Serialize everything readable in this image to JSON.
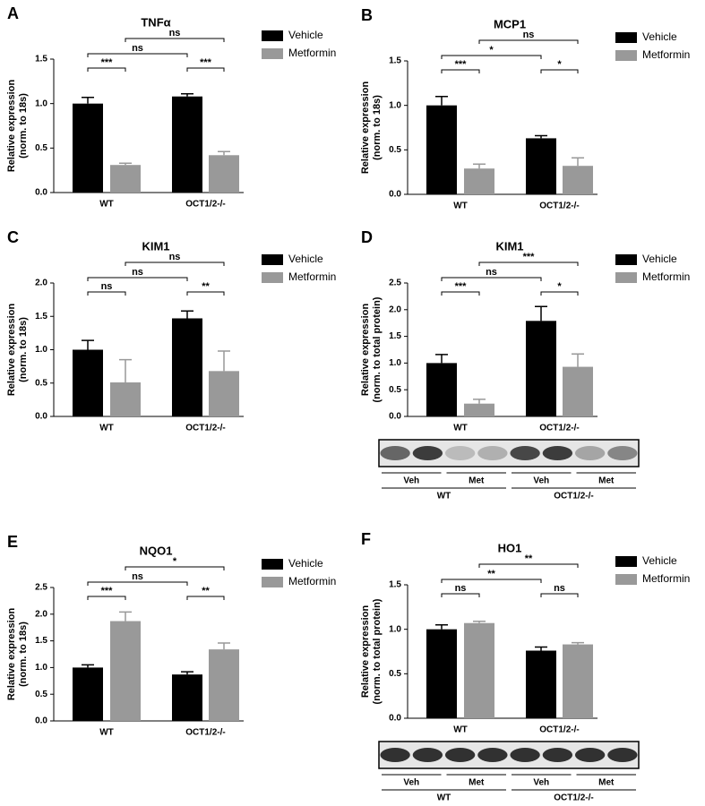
{
  "chart_data": [
    {
      "type": "bar",
      "panel": "A",
      "title": "TNFα",
      "ylabel": [
        "Relative  expression",
        "(norm. to 18s)"
      ],
      "categories": [
        "WT",
        "OCT1/2-/-"
      ],
      "series": [
        {
          "name": "Vehicle",
          "color": "#000000",
          "values": [
            1.0,
            1.08
          ],
          "errors": [
            0.07,
            0.03
          ]
        },
        {
          "name": "Metformin",
          "color": "#999999",
          "values": [
            0.31,
            0.42
          ],
          "errors": [
            0.02,
            0.04
          ]
        }
      ],
      "ylim": [
        0,
        1.5
      ],
      "yticks": [
        {
          "value": 0,
          "label": "0.0"
        },
        {
          "value": 0.5,
          "label": "0.5"
        },
        {
          "value": 1,
          "label": "1.0"
        },
        {
          "value": 1.5,
          "label": "1.5"
        }
      ],
      "significance": [
        "***",
        "***",
        "ns",
        "ns"
      ]
    },
    {
      "type": "bar",
      "panel": "B",
      "title": "MCP1",
      "ylabel": [
        "Relative  expression",
        "(norm. to 18s)"
      ],
      "categories": [
        "WT",
        "OCT1/2-/-"
      ],
      "series": [
        {
          "name": "Vehicle",
          "color": "#000000",
          "values": [
            1.0,
            0.63
          ],
          "errors": [
            0.1,
            0.03
          ]
        },
        {
          "name": "Metformin",
          "color": "#999999",
          "values": [
            0.29,
            0.32
          ],
          "errors": [
            0.05,
            0.09
          ]
        }
      ],
      "ylim": [
        0,
        1.5
      ],
      "yticks": [
        {
          "value": 0,
          "label": "0.0"
        },
        {
          "value": 0.5,
          "label": "0.5"
        },
        {
          "value": 1,
          "label": "1.0"
        },
        {
          "value": 1.5,
          "label": "1.5"
        }
      ],
      "significance": [
        "***",
        "*",
        "*",
        "ns"
      ]
    },
    {
      "type": "bar",
      "panel": "C",
      "title": "KIM1",
      "ylabel": [
        "Relative  expression",
        "(norm. to 18s)"
      ],
      "categories": [
        "WT",
        "OCT1/2-/-"
      ],
      "series": [
        {
          "name": "Vehicle",
          "color": "#000000",
          "values": [
            1.0,
            1.47
          ],
          "errors": [
            0.14,
            0.11
          ]
        },
        {
          "name": "Metformin",
          "color": "#999999",
          "values": [
            0.51,
            0.68
          ],
          "errors": [
            0.34,
            0.3
          ]
        }
      ],
      "ylim": [
        0,
        2
      ],
      "yticks": [
        {
          "value": 0,
          "label": "0.0"
        },
        {
          "value": 0.5,
          "label": "0.5"
        },
        {
          "value": 1,
          "label": "1.0"
        },
        {
          "value": 1.5,
          "label": "1.5"
        },
        {
          "value": 2,
          "label": "2.0"
        }
      ],
      "significance": [
        "ns",
        "**",
        "ns",
        "ns"
      ]
    },
    {
      "type": "bar",
      "panel": "D",
      "title": "KIM1",
      "ylabel": [
        "Relative  expression",
        "(norm. to total protein)"
      ],
      "categories": [
        "WT",
        "OCT1/2-/-"
      ],
      "series": [
        {
          "name": "Vehicle",
          "color": "#000000",
          "values": [
            1.0,
            1.79
          ],
          "errors": [
            0.16,
            0.27
          ]
        },
        {
          "name": "Metformin",
          "color": "#999999",
          "values": [
            0.24,
            0.93
          ],
          "errors": [
            0.08,
            0.24
          ]
        }
      ],
      "ylim": [
        0,
        2.5
      ],
      "yticks": [
        {
          "value": 0,
          "label": "0.0"
        },
        {
          "value": 0.5,
          "label": "0.5"
        },
        {
          "value": 1,
          "label": "1.0"
        },
        {
          "value": 1.5,
          "label": "1.5"
        },
        {
          "value": 2,
          "label": "2.0"
        },
        {
          "value": 2.5,
          "label": "2.5"
        }
      ],
      "significance": [
        "***",
        "*",
        "ns",
        "***"
      ],
      "blot": {
        "lanes": [
          "Veh",
          "Met",
          "Veh",
          "Met"
        ],
        "groups": [
          "WT",
          "OCT1/2-/-"
        ]
      }
    },
    {
      "type": "bar",
      "panel": "E",
      "title": "NQO1",
      "ylabel": [
        "Relative  expression",
        "(norm. to 18s)"
      ],
      "categories": [
        "WT",
        "OCT1/2-/-"
      ],
      "series": [
        {
          "name": "Vehicle",
          "color": "#000000",
          "values": [
            1.0,
            0.87
          ],
          "errors": [
            0.05,
            0.05
          ]
        },
        {
          "name": "Metformin",
          "color": "#999999",
          "values": [
            1.87,
            1.34
          ],
          "errors": [
            0.17,
            0.12
          ]
        }
      ],
      "ylim": [
        0,
        2.5
      ],
      "yticks": [
        {
          "value": 0,
          "label": "0.0"
        },
        {
          "value": 0.5,
          "label": "0.5"
        },
        {
          "value": 1,
          "label": "1.0"
        },
        {
          "value": 1.5,
          "label": "1.5"
        },
        {
          "value": 2,
          "label": "2.0"
        },
        {
          "value": 2.5,
          "label": "2.5"
        }
      ],
      "significance": [
        "***",
        "**",
        "ns",
        "*"
      ]
    },
    {
      "type": "bar",
      "panel": "F",
      "title": "HO1",
      "ylabel": [
        "Relative  expression",
        "(norm. to total protein)"
      ],
      "categories": [
        "WT",
        "OCT1/2-/-"
      ],
      "series": [
        {
          "name": "Vehicle",
          "color": "#000000",
          "values": [
            1.0,
            0.76
          ],
          "errors": [
            0.05,
            0.04
          ]
        },
        {
          "name": "Metformin",
          "color": "#999999",
          "values": [
            1.07,
            0.83
          ],
          "errors": [
            0.02,
            0.02
          ]
        }
      ],
      "ylim": [
        0,
        1.5
      ],
      "yticks": [
        {
          "value": 0,
          "label": "0.0"
        },
        {
          "value": 0.5,
          "label": "0.5"
        },
        {
          "value": 1,
          "label": "1.0"
        },
        {
          "value": 1.5,
          "label": "1.5"
        }
      ],
      "significance": [
        "ns",
        "ns",
        "**",
        "**"
      ],
      "blot": {
        "lanes": [
          "Veh",
          "Met",
          "Veh",
          "Met"
        ],
        "groups": [
          "WT",
          "OCT1/2-/-"
        ]
      }
    }
  ]
}
